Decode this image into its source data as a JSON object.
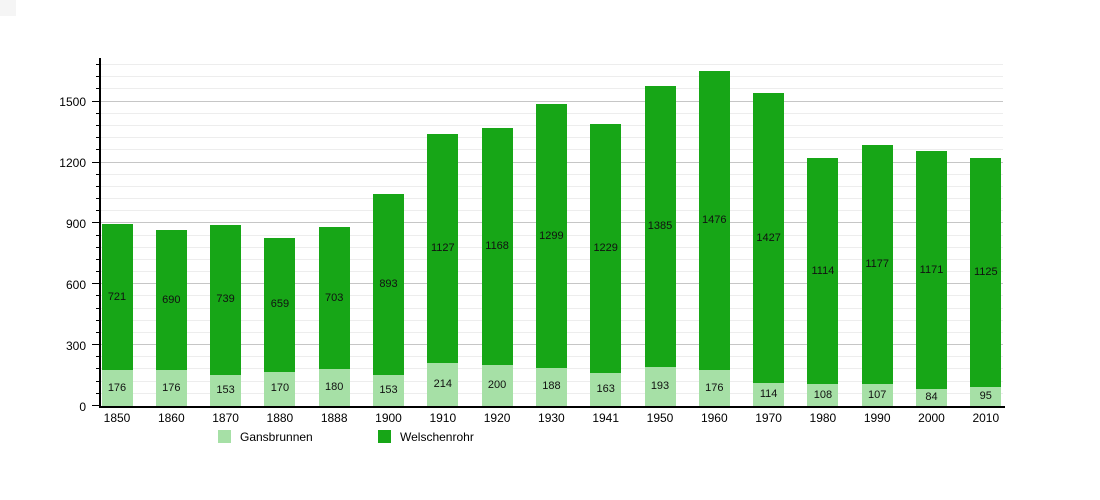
{
  "chart_data": {
    "type": "bar",
    "stacked": true,
    "title": "",
    "xlabel": "",
    "ylabel": "",
    "categories": [
      "1850",
      "1860",
      "1870",
      "1880",
      "1888",
      "1900",
      "1910",
      "1920",
      "1930",
      "1941",
      "1950",
      "1960",
      "1970",
      "1980",
      "1990",
      "2000",
      "2010"
    ],
    "series": [
      {
        "name": "Gansbrunnen",
        "color": "#a6e0a6",
        "values": [
          176,
          176,
          153,
          170,
          180,
          153,
          214,
          200,
          188,
          163,
          193,
          176,
          114,
          108,
          107,
          84,
          95
        ]
      },
      {
        "name": "Welschenrohr",
        "color": "#17a617",
        "values": [
          721,
          690,
          739,
          659,
          703,
          893,
          1127,
          1168,
          1299,
          1229,
          1385,
          1476,
          1427,
          1114,
          1177,
          1171,
          1125
        ]
      }
    ],
    "ylim": [
      0,
      1710
    ],
    "yticks": [
      0,
      300,
      600,
      900,
      1200,
      1500
    ],
    "grid": {
      "minor_step": 60,
      "major_step": 300,
      "max": 1680,
      "on": true
    },
    "legend_position": "bottom",
    "value_labels": true
  },
  "colors": {
    "axis": "#000000",
    "grid_minor": "#ededed",
    "grid_major": "#c6c6c6",
    "label_text": "#111111"
  }
}
